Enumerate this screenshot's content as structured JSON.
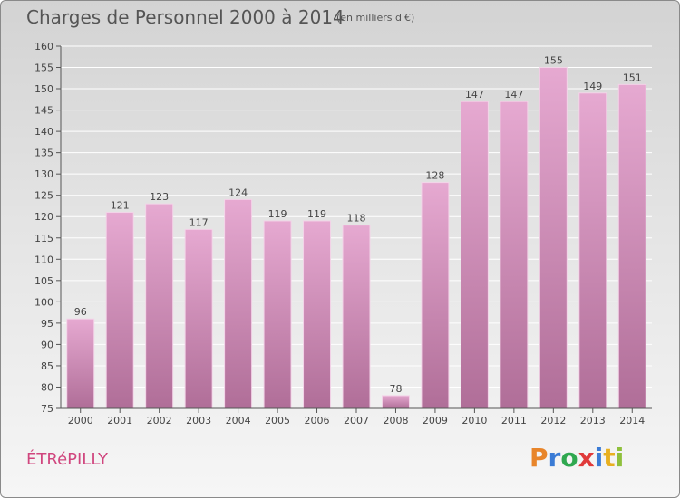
{
  "header": {
    "title": "Charges de Personnel 2000 à 2014",
    "subtitle": "(en milliers d'€)"
  },
  "footer": {
    "commune": "ÉTRéPILLY",
    "brand": "Proxiti",
    "brand_colors": [
      "#e8852a",
      "#3a7bd5",
      "#2fa84f",
      "#e03a3a",
      "#3a7bd5",
      "#e8b020",
      "#8fc03c"
    ]
  },
  "colors": {
    "bar_top": "#e6a9d1",
    "bar_bottom": "#b06e98",
    "axis": "#555555",
    "grid": "#ffffff",
    "text": "#444444"
  },
  "chart_data": {
    "type": "bar",
    "categories": [
      "2000",
      "2001",
      "2002",
      "2003",
      "2004",
      "2005",
      "2006",
      "2007",
      "2008",
      "2009",
      "2010",
      "2011",
      "2012",
      "2013",
      "2014"
    ],
    "values": [
      96,
      121,
      123,
      117,
      124,
      119,
      119,
      118,
      78,
      128,
      147,
      147,
      155,
      149,
      151
    ],
    "data_labels": [
      "96",
      "121",
      "123",
      "117",
      "124",
      "119",
      "119",
      "118",
      "78",
      "128",
      "147",
      "147",
      "155",
      "149",
      "151"
    ],
    "yticks": [
      "75",
      "80",
      "85",
      "90",
      "95",
      "100",
      "105",
      "110",
      "115",
      "120",
      "125",
      "130",
      "135",
      "140",
      "145",
      "150",
      "155",
      "160"
    ],
    "ylim": [
      75,
      160
    ],
    "grid": true,
    "legend": "none"
  }
}
